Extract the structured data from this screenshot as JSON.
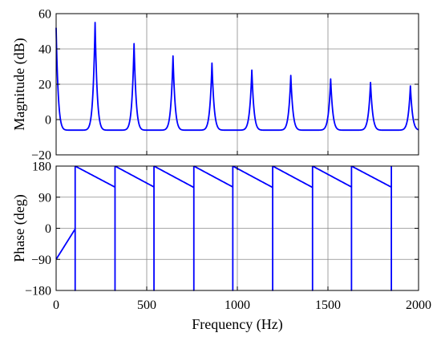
{
  "chart_data": [
    {
      "type": "line",
      "ylabel": "Magnitude (dB)",
      "xlim": [
        0,
        2000
      ],
      "ylim": [
        -20,
        60
      ],
      "xticks": [
        0,
        500,
        1000,
        1500,
        2000
      ],
      "yticks": [
        -20,
        0,
        20,
        40,
        60
      ],
      "xtick_labels": [
        "",
        "",
        "",
        "",
        ""
      ],
      "ytick_labels": [
        "−20",
        "0",
        "20",
        "40",
        "60"
      ],
      "grid": true,
      "color": "#0000ff",
      "resonance_peaks": [
        {
          "x": 0,
          "y": 52
        },
        {
          "x": 215,
          "y": 55
        },
        {
          "x": 430,
          "y": 43
        },
        {
          "x": 645,
          "y": 36
        },
        {
          "x": 860,
          "y": 32
        },
        {
          "x": 1080,
          "y": 28
        },
        {
          "x": 1295,
          "y": 25
        },
        {
          "x": 1515,
          "y": 23
        },
        {
          "x": 1735,
          "y": 21
        },
        {
          "x": 1955,
          "y": 19
        }
      ],
      "trough_min": -6
    },
    {
      "type": "line",
      "xlabel": "Frequency  (Hz)",
      "ylabel": "Phase (deg)",
      "xlim": [
        0,
        2000
      ],
      "ylim": [
        -180,
        180
      ],
      "xticks": [
        0,
        500,
        1000,
        1500,
        2000
      ],
      "yticks": [
        -180,
        -90,
        0,
        90,
        180
      ],
      "xtick_labels": [
        "0",
        "500",
        "1000",
        "1500",
        "2000"
      ],
      "ytick_labels": [
        "−180",
        "−90",
        "0",
        "90",
        "180"
      ],
      "grid": true,
      "color": "#0000ff",
      "wrap_points": [
        105,
        325,
        540,
        760,
        975,
        1195,
        1415,
        1630,
        1850
      ],
      "resonance_x": [
        215,
        430,
        645,
        860,
        1080,
        1295,
        1515,
        1735,
        1955
      ],
      "start_value": -90
    }
  ]
}
